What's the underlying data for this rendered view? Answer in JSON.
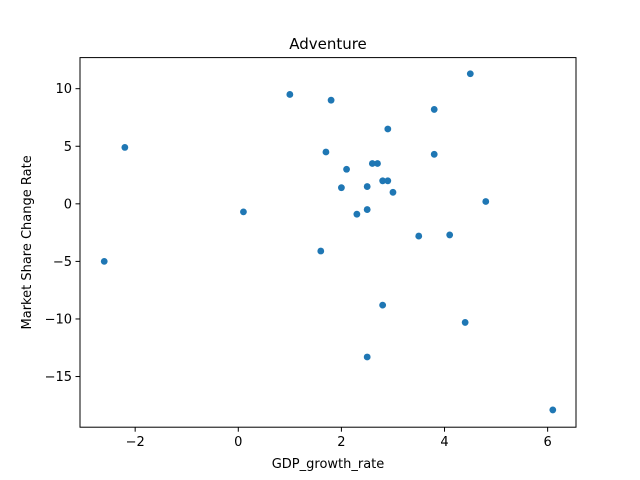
{
  "chart_data": {
    "type": "scatter",
    "title": "Adventure",
    "xlabel": "GDP_growth_rate",
    "ylabel": "Market Share Change Rate",
    "xlim": [
      -3.07,
      6.55
    ],
    "ylim": [
      -19.4,
      12.7
    ],
    "xticks": [
      -2,
      0,
      2,
      4,
      6
    ],
    "xtick_labels": [
      "−2",
      "0",
      "2",
      "4",
      "6"
    ],
    "yticks": [
      -15,
      -10,
      -5,
      0,
      5,
      10
    ],
    "ytick_labels": [
      "−15",
      "−10",
      "−5",
      "0",
      "5",
      "10"
    ],
    "grid": false,
    "legend": "none",
    "marker_color": "#1f77b4",
    "series": [
      {
        "points": [
          [
            -2.6,
            -5.0
          ],
          [
            -2.2,
            4.9
          ],
          [
            0.1,
            -0.7
          ],
          [
            1.0,
            9.5
          ],
          [
            1.6,
            -4.1
          ],
          [
            1.7,
            4.5
          ],
          [
            1.8,
            9.0
          ],
          [
            2.0,
            1.4
          ],
          [
            2.1,
            3.0
          ],
          [
            2.3,
            -0.9
          ],
          [
            2.5,
            1.5
          ],
          [
            2.5,
            -0.5
          ],
          [
            2.5,
            -13.3
          ],
          [
            2.6,
            3.5
          ],
          [
            2.7,
            3.5
          ],
          [
            2.8,
            2.0
          ],
          [
            2.8,
            -8.8
          ],
          [
            2.9,
            6.5
          ],
          [
            2.9,
            2.0
          ],
          [
            3.0,
            1.0
          ],
          [
            3.5,
            -2.8
          ],
          [
            3.8,
            8.2
          ],
          [
            3.8,
            4.3
          ],
          [
            4.1,
            -2.7
          ],
          [
            4.4,
            -10.3
          ],
          [
            4.5,
            11.3
          ],
          [
            4.8,
            0.2
          ],
          [
            6.1,
            -17.9
          ]
        ]
      }
    ]
  }
}
